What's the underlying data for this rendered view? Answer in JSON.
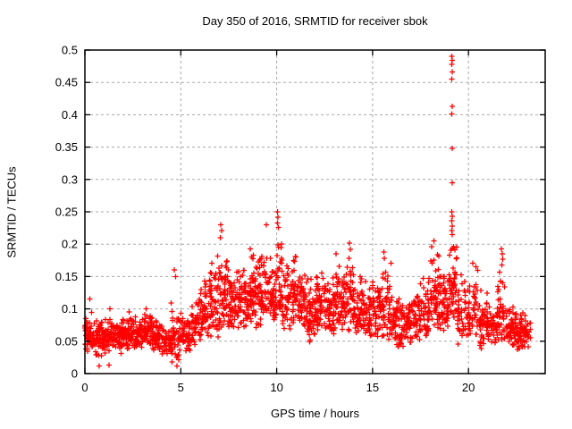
{
  "window": {
    "background": "#ffffff"
  },
  "chart_data": {
    "type": "scatter",
    "title": "Day 350 of 2016, SRMTID for receiver sbok",
    "xlabel": "GPS time / hours",
    "ylabel": "SRMTID / TECUs",
    "xlim": [
      0,
      24
    ],
    "ylim": [
      0,
      0.5
    ],
    "xtick_values": [
      0,
      5,
      10,
      15,
      20
    ],
    "xtick_labels": [
      "0",
      "5",
      "10",
      "15",
      "20"
    ],
    "ytick_values": [
      0,
      0.05,
      0.1,
      0.15,
      0.2,
      0.25,
      0.3,
      0.35,
      0.4,
      0.45,
      0.5
    ],
    "ytick_labels": [
      "0",
      "0.05",
      "0.1",
      "0.15",
      "0.2",
      "0.25",
      "0.3",
      "0.35",
      "0.4",
      "0.45",
      "0.5"
    ],
    "legend": "none",
    "grid": true,
    "grid_style": "dashed",
    "grid_color": "#a8a8a8",
    "border_color": "#000000",
    "marker": "plus",
    "marker_color": "#ff0000",
    "marker_size": 7,
    "seed": 42,
    "density_bins": [
      {
        "x0": 0.0,
        "x1": 0.5,
        "lo": 0.03,
        "hi": 0.1,
        "n": 55,
        "sk": 1.3
      },
      {
        "x0": 0.5,
        "x1": 1.0,
        "lo": 0.025,
        "hi": 0.085,
        "n": 55,
        "sk": 1.1
      },
      {
        "x0": 1.0,
        "x1": 1.5,
        "lo": 0.03,
        "hi": 0.09,
        "n": 55,
        "sk": 1.1
      },
      {
        "x0": 1.5,
        "x1": 2.0,
        "lo": 0.03,
        "hi": 0.085,
        "n": 55,
        "sk": 1.1
      },
      {
        "x0": 2.0,
        "x1": 2.5,
        "lo": 0.035,
        "hi": 0.09,
        "n": 55,
        "sk": 1.1
      },
      {
        "x0": 2.5,
        "x1": 3.0,
        "lo": 0.03,
        "hi": 0.09,
        "n": 55,
        "sk": 1.1
      },
      {
        "x0": 3.0,
        "x1": 3.5,
        "lo": 0.04,
        "hi": 0.095,
        "n": 55,
        "sk": 1.1
      },
      {
        "x0": 3.5,
        "x1": 4.0,
        "lo": 0.035,
        "hi": 0.085,
        "n": 50,
        "sk": 1.1
      },
      {
        "x0": 4.0,
        "x1": 4.5,
        "lo": 0.025,
        "hi": 0.08,
        "n": 45,
        "sk": 1.1
      },
      {
        "x0": 4.5,
        "x1": 5.0,
        "lo": 0.015,
        "hi": 0.13,
        "n": 50,
        "sk": 1.5
      },
      {
        "x0": 5.0,
        "x1": 5.5,
        "lo": 0.03,
        "hi": 0.105,
        "n": 45,
        "sk": 1.2
      },
      {
        "x0": 5.5,
        "x1": 6.0,
        "lo": 0.04,
        "hi": 0.125,
        "n": 45,
        "sk": 1.2
      },
      {
        "x0": 6.0,
        "x1": 6.5,
        "lo": 0.05,
        "hi": 0.145,
        "n": 50,
        "sk": 1.3
      },
      {
        "x0": 6.5,
        "x1": 7.0,
        "lo": 0.055,
        "hi": 0.195,
        "n": 55,
        "sk": 1.5
      },
      {
        "x0": 7.0,
        "x1": 7.5,
        "lo": 0.07,
        "hi": 0.215,
        "n": 55,
        "sk": 1.5
      },
      {
        "x0": 7.5,
        "x1": 8.0,
        "lo": 0.065,
        "hi": 0.165,
        "n": 55,
        "sk": 1.3
      },
      {
        "x0": 8.0,
        "x1": 8.5,
        "lo": 0.07,
        "hi": 0.175,
        "n": 55,
        "sk": 1.3
      },
      {
        "x0": 8.5,
        "x1": 9.0,
        "lo": 0.07,
        "hi": 0.195,
        "n": 55,
        "sk": 1.4
      },
      {
        "x0": 9.0,
        "x1": 9.5,
        "lo": 0.07,
        "hi": 0.205,
        "n": 55,
        "sk": 1.4
      },
      {
        "x0": 9.5,
        "x1": 10.0,
        "lo": 0.08,
        "hi": 0.185,
        "n": 55,
        "sk": 1.3
      },
      {
        "x0": 10.0,
        "x1": 10.3,
        "lo": 0.09,
        "hi": 0.25,
        "n": 30,
        "sk": 1.5
      },
      {
        "x0": 10.3,
        "x1": 10.75,
        "lo": 0.065,
        "hi": 0.175,
        "n": 40,
        "sk": 1.3
      },
      {
        "x0": 10.75,
        "x1": 11.1,
        "lo": 0.075,
        "hi": 0.21,
        "n": 35,
        "sk": 1.5
      },
      {
        "x0": 11.1,
        "x1": 11.5,
        "lo": 0.06,
        "hi": 0.16,
        "n": 45,
        "sk": 1.2
      },
      {
        "x0": 11.5,
        "x1": 12.0,
        "lo": 0.045,
        "hi": 0.155,
        "n": 55,
        "sk": 1.3
      },
      {
        "x0": 12.0,
        "x1": 12.5,
        "lo": 0.065,
        "hi": 0.165,
        "n": 55,
        "sk": 1.3
      },
      {
        "x0": 12.5,
        "x1": 13.0,
        "lo": 0.055,
        "hi": 0.155,
        "n": 55,
        "sk": 1.2
      },
      {
        "x0": 13.0,
        "x1": 13.5,
        "lo": 0.065,
        "hi": 0.17,
        "n": 50,
        "sk": 1.3
      },
      {
        "x0": 13.5,
        "x1": 14.0,
        "lo": 0.065,
        "hi": 0.2,
        "n": 50,
        "sk": 1.4
      },
      {
        "x0": 14.0,
        "x1": 14.5,
        "lo": 0.06,
        "hi": 0.155,
        "n": 50,
        "sk": 1.3
      },
      {
        "x0": 14.5,
        "x1": 15.0,
        "lo": 0.055,
        "hi": 0.145,
        "n": 50,
        "sk": 1.2
      },
      {
        "x0": 15.0,
        "x1": 15.5,
        "lo": 0.05,
        "hi": 0.145,
        "n": 50,
        "sk": 1.2
      },
      {
        "x0": 15.5,
        "x1": 16.0,
        "lo": 0.05,
        "hi": 0.185,
        "n": 50,
        "sk": 1.5
      },
      {
        "x0": 16.0,
        "x1": 16.5,
        "lo": 0.035,
        "hi": 0.125,
        "n": 50,
        "sk": 1.2
      },
      {
        "x0": 16.5,
        "x1": 17.0,
        "lo": 0.04,
        "hi": 0.125,
        "n": 50,
        "sk": 1.2
      },
      {
        "x0": 17.0,
        "x1": 17.5,
        "lo": 0.05,
        "hi": 0.135,
        "n": 50,
        "sk": 1.2
      },
      {
        "x0": 17.5,
        "x1": 18.0,
        "lo": 0.055,
        "hi": 0.175,
        "n": 50,
        "sk": 1.4
      },
      {
        "x0": 18.0,
        "x1": 18.5,
        "lo": 0.07,
        "hi": 0.205,
        "n": 55,
        "sk": 1.4
      },
      {
        "x0": 18.5,
        "x1": 19.0,
        "lo": 0.06,
        "hi": 0.19,
        "n": 55,
        "sk": 1.3
      },
      {
        "x0": 19.0,
        "x1": 19.4,
        "lo": 0.08,
        "hi": 0.21,
        "n": 45,
        "sk": 1.2
      },
      {
        "x0": 19.4,
        "x1": 20.0,
        "lo": 0.045,
        "hi": 0.175,
        "n": 50,
        "sk": 1.4
      },
      {
        "x0": 20.0,
        "x1": 20.5,
        "lo": 0.05,
        "hi": 0.18,
        "n": 45,
        "sk": 1.5
      },
      {
        "x0": 20.5,
        "x1": 21.0,
        "lo": 0.035,
        "hi": 0.13,
        "n": 45,
        "sk": 1.3
      },
      {
        "x0": 21.0,
        "x1": 21.5,
        "lo": 0.04,
        "hi": 0.12,
        "n": 45,
        "sk": 1.2
      },
      {
        "x0": 21.5,
        "x1": 22.0,
        "lo": 0.05,
        "hi": 0.165,
        "n": 45,
        "sk": 1.4
      },
      {
        "x0": 22.0,
        "x1": 22.5,
        "lo": 0.04,
        "hi": 0.115,
        "n": 55,
        "sk": 1.2
      },
      {
        "x0": 22.5,
        "x1": 23.0,
        "lo": 0.035,
        "hi": 0.1,
        "n": 55,
        "sk": 1.2
      },
      {
        "x0": 23.0,
        "x1": 23.25,
        "lo": 0.04,
        "hi": 0.09,
        "n": 15,
        "sk": 1.1
      }
    ],
    "outliers": [
      [
        19.13,
        0.49
      ],
      [
        19.16,
        0.484
      ],
      [
        19.14,
        0.478
      ],
      [
        19.15,
        0.466
      ],
      [
        19.13,
        0.455
      ],
      [
        19.16,
        0.413
      ],
      [
        19.14,
        0.401
      ],
      [
        19.15,
        0.348
      ],
      [
        19.16,
        0.295
      ],
      [
        19.13,
        0.25
      ],
      [
        19.15,
        0.243
      ],
      [
        19.14,
        0.236
      ],
      [
        19.16,
        0.228
      ],
      [
        19.13,
        0.221
      ],
      [
        19.15,
        0.215
      ],
      [
        10.04,
        0.25
      ],
      [
        10.07,
        0.242
      ],
      [
        10.05,
        0.233
      ],
      [
        10.1,
        0.226
      ],
      [
        7.08,
        0.23
      ],
      [
        7.12,
        0.221
      ],
      [
        7.05,
        0.21
      ],
      [
        9.45,
        0.23
      ],
      [
        4.67,
        0.16
      ],
      [
        4.72,
        0.15
      ],
      [
        13.8,
        0.202
      ],
      [
        13.85,
        0.192
      ],
      [
        13.1,
        0.185
      ],
      [
        21.72,
        0.193
      ],
      [
        21.76,
        0.185
      ],
      [
        21.79,
        0.177
      ],
      [
        21.74,
        0.168
      ],
      [
        15.58,
        0.188
      ],
      [
        15.62,
        0.178
      ],
      [
        18.2,
        0.205
      ],
      [
        0.25,
        0.115
      ],
      [
        1.3,
        0.1
      ],
      [
        3.2,
        0.1
      ],
      [
        2.3,
        0.095
      ],
      [
        0.75,
        0.012
      ],
      [
        4.8,
        0.012
      ],
      [
        1.25,
        0.013
      ]
    ]
  }
}
